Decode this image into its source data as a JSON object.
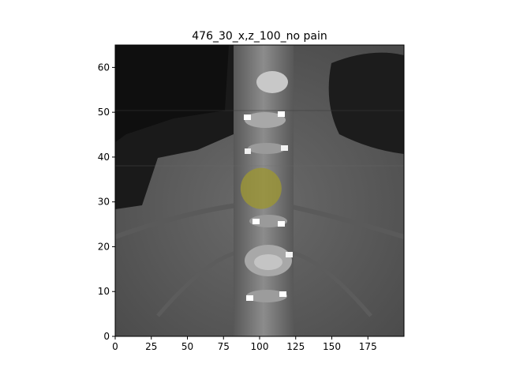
{
  "figure": {
    "title": "476_30_x,z_100_no pain"
  },
  "axes": {
    "x_ticks": [
      "0",
      "25",
      "50",
      "75",
      "100",
      "125",
      "150",
      "175"
    ],
    "y_ticks": [
      "0",
      "10",
      "20",
      "30",
      "40",
      "50",
      "60"
    ],
    "x_tick_values": [
      0,
      25,
      50,
      75,
      100,
      125,
      150,
      175
    ],
    "y_tick_values": [
      0,
      10,
      20,
      30,
      40,
      50,
      60
    ],
    "xlim": [
      0,
      200
    ],
    "ylim": [
      0,
      65
    ]
  },
  "overlay": {
    "shape": "circle",
    "center_x": 101,
    "center_y": 33,
    "color": "#9a9438"
  }
}
